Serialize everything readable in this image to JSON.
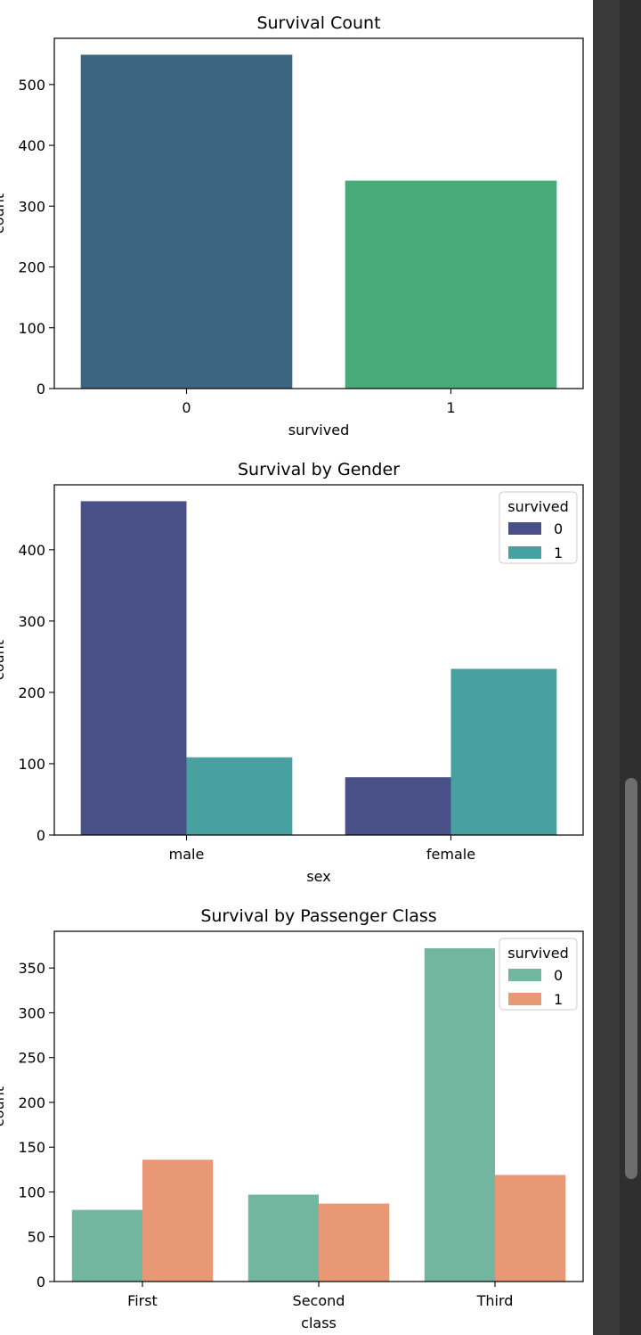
{
  "chart_data": [
    {
      "type": "bar",
      "title": "Survival Count",
      "xlabel": "survived",
      "ylabel": "count",
      "categories": [
        "0",
        "1"
      ],
      "values": [
        549,
        342
      ],
      "bar_colors": [
        "#3b6580",
        "#48aa78"
      ],
      "yticks": [
        0,
        100,
        200,
        300,
        400,
        500
      ],
      "ylim": [
        0,
        576
      ],
      "grid": false,
      "legend": null
    },
    {
      "type": "bar",
      "title": "Survival by Gender",
      "xlabel": "sex",
      "ylabel": "count",
      "categories": [
        "male",
        "female"
      ],
      "series": [
        {
          "name": "0",
          "color": "#485087",
          "values": [
            468,
            81
          ]
        },
        {
          "name": "1",
          "color": "#48a0a0",
          "values": [
            109,
            233
          ]
        }
      ],
      "yticks": [
        0,
        100,
        200,
        300,
        400
      ],
      "ylim": [
        0,
        491
      ],
      "grid": false,
      "legend": {
        "title": "survived",
        "placement": "top-right"
      }
    },
    {
      "type": "bar",
      "title": "Survival by Passenger Class",
      "xlabel": "class",
      "ylabel": "count",
      "categories": [
        "First",
        "Second",
        "Third"
      ],
      "series": [
        {
          "name": "0",
          "color": "#72b6a0",
          "values": [
            80,
            97,
            372
          ]
        },
        {
          "name": "1",
          "color": "#e99875",
          "values": [
            136,
            87,
            119
          ]
        }
      ],
      "yticks": [
        0,
        50,
        100,
        150,
        200,
        250,
        300,
        350
      ],
      "ylim": [
        0,
        391
      ],
      "grid": false,
      "legend": {
        "title": "survived",
        "placement": "top-right"
      }
    }
  ]
}
